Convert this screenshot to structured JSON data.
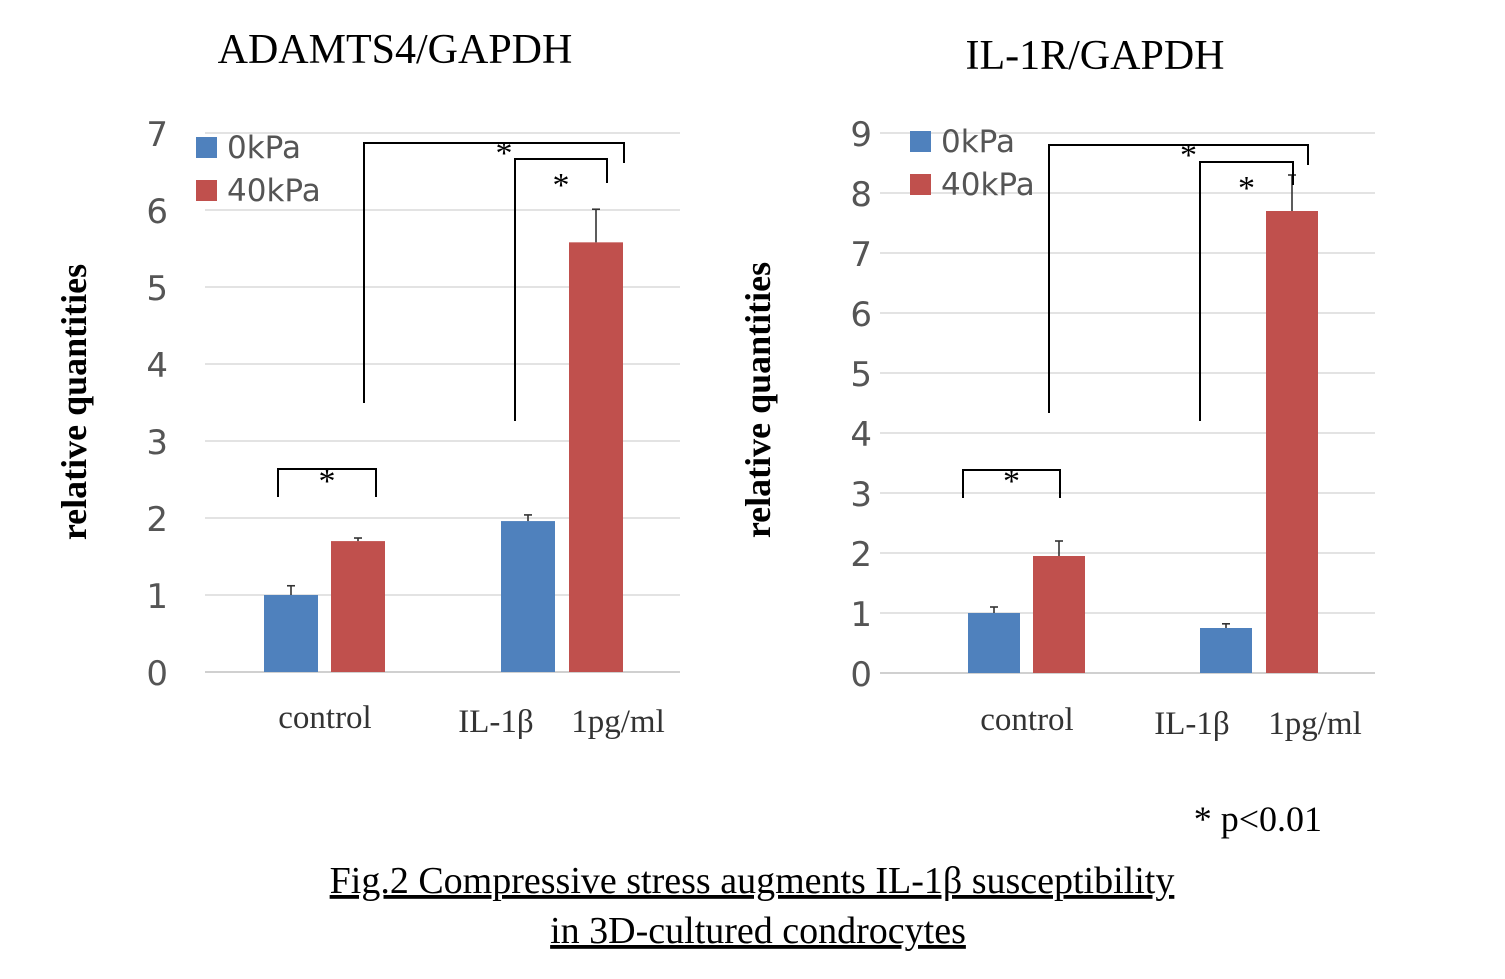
{
  "chart_data": [
    {
      "type": "bar",
      "title": "ADAMTS4/GAPDH",
      "ylabel": "relative quantities",
      "xlabel": "",
      "ylim": [
        0,
        7
      ],
      "yticks": [
        "0",
        "1",
        "2",
        "3",
        "4",
        "5",
        "6",
        "7"
      ],
      "grid": true,
      "legend": "top-left",
      "categories": [
        "control",
        "IL-1β 1pg/ml"
      ],
      "category_labels": [
        "control",
        "IL-1β",
        "1pg/ml"
      ],
      "series": [
        {
          "name": "0kPa",
          "color": "#4f81bd",
          "values": [
            1.0,
            1.96
          ],
          "errors": [
            0.12,
            0.08
          ]
        },
        {
          "name": "40kPa",
          "color": "#c0504d",
          "values": [
            1.7,
            5.58
          ],
          "errors": [
            0.04,
            0.43
          ]
        }
      ],
      "significance": [
        {
          "label": "*",
          "between": "control 0kPa vs control 40kPa"
        },
        {
          "label": "*",
          "between": "control 40kPa vs IL-1β 40kPa"
        },
        {
          "label": "*",
          "between": "IL-1β 0kPa vs IL-1β 40kPa"
        }
      ]
    },
    {
      "type": "bar",
      "title": "IL-1R/GAPDH",
      "ylabel": "relative quantities",
      "xlabel": "",
      "ylim": [
        0,
        9
      ],
      "yticks": [
        "0",
        "1",
        "2",
        "3",
        "4",
        "5",
        "6",
        "7",
        "8",
        "9"
      ],
      "grid": true,
      "legend": "top-left",
      "categories": [
        "control",
        "IL-1β 1pg/ml"
      ],
      "category_labels": [
        "control",
        "IL-1β",
        "1pg/ml"
      ],
      "series": [
        {
          "name": "0kPa",
          "color": "#4f81bd",
          "values": [
            1.0,
            0.75
          ],
          "errors": [
            0.1,
            0.07
          ]
        },
        {
          "name": "40kPa",
          "color": "#c0504d",
          "values": [
            1.95,
            7.7
          ],
          "errors": [
            0.25,
            0.6
          ]
        }
      ],
      "significance": [
        {
          "label": "*",
          "between": "control 0kPa vs control 40kPa"
        },
        {
          "label": "*",
          "between": "control 40kPa vs IL-1β 40kPa"
        },
        {
          "label": "*",
          "between": "IL-1β 0kPa vs IL-1β 40kPa"
        }
      ]
    }
  ],
  "footnote": "* p<0.01",
  "caption": {
    "line1": "Fig.2  Compressive stress augments IL-1β  susceptibility",
    "line2": " in 3D-cultured condrocytes"
  }
}
